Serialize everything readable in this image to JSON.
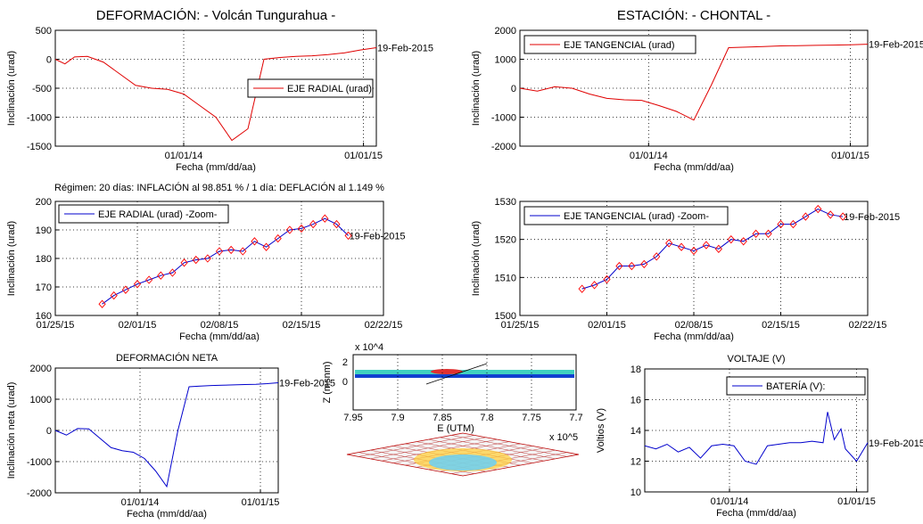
{
  "main_title_left": "DEFORMACIÓN: - Volcán Tungurahua -",
  "main_title_right": "ESTACIÓN: - CHONTAL -",
  "regime_text": "Régimen: 20 días: INFLACIÓN al 98.851 % / 1 día: DEFLACIÓN al 1.149 %",
  "colors": {
    "red": "#e00000",
    "blue": "#0000cc",
    "marker": "#ff0000"
  },
  "chart_data": [
    {
      "id": "radial",
      "type": "line",
      "ylabel": "Inclinación (urad)",
      "xlabel": "Fecha (mm/dd/aa)",
      "ylim": [
        -1500,
        500
      ],
      "yticks": [
        "500",
        "0",
        "-500",
        "-1000",
        "-1500"
      ],
      "xticks": [
        "01/01/14",
        "01/01/15"
      ],
      "legend": "EJE RADIAL (urad)",
      "end_label": "19-Feb-2015",
      "series": [
        {
          "x": [
            0,
            0.03,
            0.06,
            0.1,
            0.15,
            0.2,
            0.25,
            0.3,
            0.35,
            0.4,
            0.45,
            0.5,
            0.55,
            0.6,
            0.65,
            0.7,
            0.75,
            0.8,
            0.85,
            0.9,
            0.95,
            1.0
          ],
          "y": [
            0,
            -80,
            40,
            50,
            -50,
            -250,
            -450,
            -500,
            -520,
            -600,
            -800,
            -1000,
            -1400,
            -1200,
            0,
            30,
            50,
            60,
            80,
            110,
            160,
            200
          ]
        }
      ]
    },
    {
      "id": "tangencial",
      "type": "line",
      "ylabel": "Inclinación (urad)",
      "xlabel": "Fecha (mm/dd/aa)",
      "ylim": [
        -2000,
        2000
      ],
      "yticks": [
        "2000",
        "1000",
        "0",
        "-1000",
        "-2000"
      ],
      "xticks": [
        "01/01/14",
        "01/01/15"
      ],
      "legend": "EJE TANGENCIAL (urad)",
      "end_label": "19-Feb-2015",
      "series": [
        {
          "x": [
            0,
            0.05,
            0.1,
            0.15,
            0.2,
            0.25,
            0.3,
            0.35,
            0.4,
            0.45,
            0.5,
            0.55,
            0.6,
            0.65,
            0.7,
            0.75,
            0.8,
            0.85,
            0.9,
            0.95,
            1.0
          ],
          "y": [
            0,
            -100,
            50,
            0,
            -200,
            -350,
            -400,
            -420,
            -600,
            -800,
            -1100,
            100,
            1400,
            1420,
            1440,
            1460,
            1470,
            1480,
            1490,
            1500,
            1520
          ]
        }
      ]
    },
    {
      "id": "radial_zoom",
      "type": "line",
      "ylabel": "Inclinación (urad)",
      "xlabel": "Fecha (mm/dd/aa)",
      "title": "Régimen: 20 días: INFLACIÓN al 98.851 % / 1 día: DEFLACIÓN al 1.149 %",
      "ylim": [
        160,
        200
      ],
      "yticks": [
        "200",
        "190",
        "180",
        "170",
        "160"
      ],
      "xticks": [
        "01/25/15",
        "02/01/15",
        "02/08/15",
        "02/15/15",
        "02/22/15"
      ],
      "legend": "EJE RADIAL (urad) -Zoom-",
      "end_label": "19-Feb-2015",
      "series": [
        {
          "x": [
            4,
            5,
            6,
            7,
            8,
            9,
            10,
            11,
            12,
            13,
            14,
            15,
            16,
            17,
            18,
            19,
            20,
            21,
            22,
            23,
            24,
            25
          ],
          "y": [
            164,
            167,
            169,
            171,
            172.5,
            174,
            175,
            178.5,
            179.5,
            180,
            182.5,
            183,
            182.5,
            186,
            184,
            187,
            190,
            190.5,
            192,
            194,
            192,
            188
          ]
        }
      ]
    },
    {
      "id": "tangencial_zoom",
      "type": "line",
      "ylabel": "Inclinación (urad)",
      "xlabel": "Fecha (mm/dd/aa)",
      "ylim": [
        1500,
        1530
      ],
      "yticks": [
        "1530",
        "1520",
        "1510",
        "1500"
      ],
      "xticks": [
        "01/25/15",
        "02/01/15",
        "02/08/15",
        "02/15/15",
        "02/22/15"
      ],
      "legend": "EJE TANGENCIAL (urad) -Zoom-",
      "end_label": "19-Feb-2015",
      "series": [
        {
          "x": [
            5,
            6,
            7,
            8,
            9,
            10,
            11,
            12,
            13,
            14,
            15,
            16,
            17,
            18,
            19,
            20,
            21,
            22,
            23,
            24,
            25,
            26
          ],
          "y": [
            1507,
            1508,
            1509.5,
            1513,
            1513,
            1513.5,
            1515.5,
            1519,
            1518,
            1517,
            1518.5,
            1517.5,
            1520,
            1519.5,
            1521.5,
            1521.5,
            1524,
            1524,
            1526,
            1528,
            1526.5,
            1526
          ]
        }
      ]
    },
    {
      "id": "neta",
      "type": "line",
      "title": "DEFORMACIÓN NETA",
      "ylabel": "Inclinación neta (urad)",
      "xlabel": "Fecha (mm/dd/aa)",
      "ylim": [
        -2000,
        2000
      ],
      "yticks": [
        "2000",
        "1000",
        "0",
        "-1000",
        "-2000"
      ],
      "xticks": [
        "01/01/14",
        "01/01/15"
      ],
      "end_label": "19-Feb-2015",
      "series": [
        {
          "x": [
            0,
            0.05,
            0.1,
            0.15,
            0.2,
            0.25,
            0.3,
            0.35,
            0.4,
            0.45,
            0.5,
            0.55,
            0.6,
            0.65,
            0.7,
            0.75,
            0.8,
            0.85,
            0.9,
            0.95,
            1.0
          ],
          "y": [
            0,
            -150,
            60,
            50,
            -250,
            -550,
            -650,
            -700,
            -900,
            -1300,
            -1800,
            0,
            1400,
            1420,
            1440,
            1450,
            1460,
            1470,
            1480,
            1500,
            1530
          ]
        }
      ]
    },
    {
      "id": "voltaje",
      "type": "line",
      "title": "VOLTAJE (V)",
      "ylabel": "Voltios (V)",
      "xlabel": "Fecha (mm/dd/aa)",
      "ylim": [
        10,
        18
      ],
      "yticks": [
        "18",
        "16",
        "14",
        "12",
        "10"
      ],
      "xticks": [
        "01/01/14",
        "01/01/15"
      ],
      "legend": "BATERÍA (V):",
      "end_label": "19-Feb-2015",
      "series": [
        {
          "x": [
            0,
            0.05,
            0.1,
            0.15,
            0.2,
            0.25,
            0.3,
            0.35,
            0.4,
            0.45,
            0.5,
            0.55,
            0.6,
            0.65,
            0.7,
            0.75,
            0.8,
            0.82,
            0.85,
            0.88,
            0.9,
            0.95,
            1.0
          ],
          "y": [
            13,
            12.8,
            13.1,
            12.6,
            12.9,
            12.2,
            13,
            13.1,
            13,
            12,
            11.8,
            13,
            13.1,
            13.2,
            13.2,
            13.3,
            13.2,
            15.2,
            13.4,
            14.1,
            12.8,
            12,
            13.2
          ]
        }
      ]
    },
    {
      "id": "mini3d",
      "type": "scatter",
      "ylabel": "Z (msnm)",
      "xlabel": "E (UTM)",
      "y_exponent": "x 10^4",
      "x_exponent": "x 10^5",
      "yticks": [
        "0",
        "2"
      ],
      "xticks": [
        "7.95",
        "7.9",
        "7.85",
        "7.8",
        "7.75",
        "7.7"
      ]
    }
  ]
}
